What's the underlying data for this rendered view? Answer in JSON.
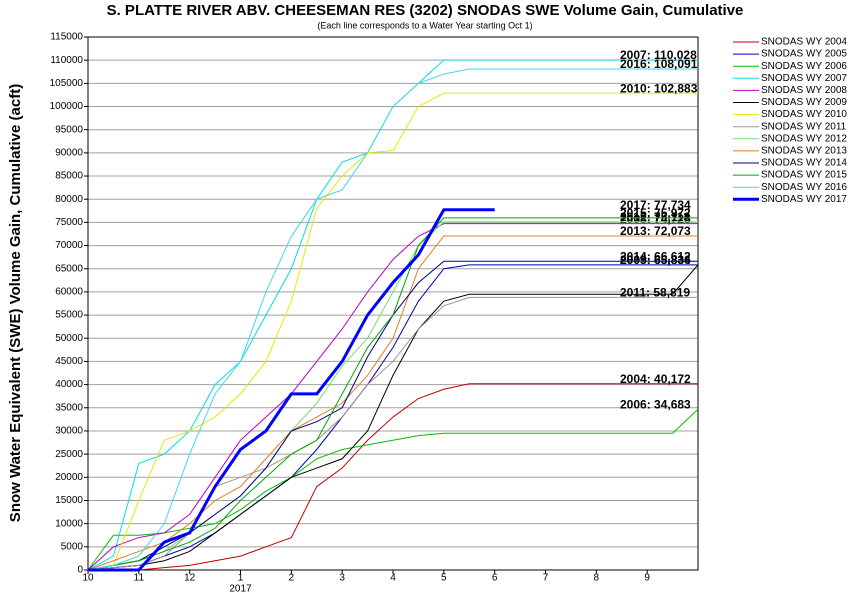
{
  "chart_data": {
    "type": "line",
    "title": "S. PLATTE RIVER ABV. CHEESEMAN RES (3202) SNODAS SWE Volume Gain, Cumulative",
    "subtitle": "(Each line corresponds to a Water Year starting Oct 1)",
    "y_label": "Snow Water Equivalent (SWE) Volume Gain, Cumulative (acft)",
    "x_sublabel": "2017",
    "xlim": [
      0,
      12
    ],
    "xticks": [
      {
        "value": 0,
        "label": "10"
      },
      {
        "value": 1,
        "label": "11"
      },
      {
        "value": 2,
        "label": "12"
      },
      {
        "value": 3,
        "label": "1"
      },
      {
        "value": 4,
        "label": "2"
      },
      {
        "value": 5,
        "label": "3"
      },
      {
        "value": 6,
        "label": "4"
      },
      {
        "value": 7,
        "label": "5"
      },
      {
        "value": 8,
        "label": "6"
      },
      {
        "value": 9,
        "label": "7"
      },
      {
        "value": 10,
        "label": "8"
      },
      {
        "value": 11,
        "label": "9"
      }
    ],
    "ylim": [
      0,
      115000
    ],
    "yticks": [
      0,
      5000,
      10000,
      15000,
      20000,
      25000,
      30000,
      35000,
      40000,
      45000,
      50000,
      55000,
      60000,
      65000,
      70000,
      75000,
      80000,
      85000,
      90000,
      95000,
      100000,
      105000,
      110000,
      115000
    ],
    "grid": true,
    "legend": "outside-top-right",
    "x": [
      0,
      0.5,
      1,
      1.5,
      2,
      2.5,
      3,
      3.5,
      4,
      4.5,
      5,
      5.5,
      6,
      6.5,
      7,
      7.5,
      8,
      8.5,
      9,
      9.5,
      10,
      10.5,
      11,
      11.5,
      12
    ],
    "series": [
      {
        "name": "SNODAS WY 2004",
        "color": "#c00000",
        "width": 1,
        "end_label": "2004: 40,172",
        "values": [
          0,
          0,
          0,
          500,
          1000,
          2000,
          3000,
          5000,
          7000,
          18000,
          22000,
          28000,
          33000,
          37000,
          39000,
          40172,
          40172,
          40172,
          40172,
          40172,
          40172,
          40172,
          40172,
          40172,
          40172
        ]
      },
      {
        "name": "SNODAS WY 2005",
        "color": "#0000c0",
        "width": 1,
        "end_label": "2005: 65,836",
        "values": [
          0,
          500,
          1000,
          3000,
          5000,
          8000,
          12000,
          16000,
          20000,
          26000,
          33000,
          40000,
          48000,
          58000,
          65000,
          65836,
          65836,
          65836,
          65836,
          65836,
          65836,
          65836,
          65836,
          65836,
          65836
        ]
      },
      {
        "name": "SNODAS WY 2006",
        "color": "#00c000",
        "width": 1,
        "end_label": "2006: 34,683",
        "values": [
          0,
          7500,
          7500,
          8000,
          9000,
          10000,
          13000,
          17000,
          20000,
          24000,
          26000,
          27000,
          28000,
          29000,
          29500,
          29500,
          29500,
          29500,
          29500,
          29500,
          29500,
          29500,
          29500,
          29500,
          34683
        ]
      },
      {
        "name": "SNODAS WY 2007",
        "color": "#00e0e0",
        "width": 1,
        "end_label": "2007: 110,028",
        "values": [
          0,
          3000,
          23000,
          25000,
          30000,
          40000,
          45000,
          55000,
          65000,
          80000,
          88000,
          90000,
          100000,
          105000,
          110028,
          110028,
          110028,
          110028,
          110028,
          110028,
          110028,
          110028,
          110028,
          110028,
          110028
        ]
      },
      {
        "name": "SNODAS WY 2008",
        "color": "#c000c0",
        "width": 1,
        "end_label": "2008: 74,725",
        "values": [
          0,
          5000,
          7000,
          8000,
          12000,
          20000,
          28000,
          33000,
          38000,
          45000,
          52000,
          60000,
          67000,
          72000,
          74725,
          74725,
          74725,
          74725,
          74725,
          74725,
          74725,
          74725,
          74725,
          74725,
          74725
        ]
      },
      {
        "name": "SNODAS WY 2009",
        "color": "#000000",
        "width": 1,
        "end_label": "2009: 65,834",
        "values": [
          0,
          500,
          1000,
          2000,
          4000,
          8000,
          12000,
          16000,
          20000,
          22000,
          24000,
          30000,
          42000,
          52000,
          58000,
          59500,
          59500,
          59500,
          59500,
          59500,
          59500,
          59500,
          59500,
          59500,
          65834
        ]
      },
      {
        "name": "SNODAS WY 2010",
        "color": "#e8e800",
        "width": 1,
        "end_label": "2010: 102,883",
        "values": [
          0,
          1000,
          15000,
          28000,
          30000,
          33000,
          38000,
          45000,
          58000,
          78000,
          85000,
          90000,
          90500,
          100000,
          102883,
          102883,
          102883,
          102883,
          102883,
          102883,
          102883,
          102883,
          102883,
          102883,
          102883
        ]
      },
      {
        "name": "SNODAS WY 2011",
        "color": "#a89090",
        "width": 1,
        "end_label": "2011: 58,819",
        "values": [
          0,
          500,
          1000,
          3000,
          8000,
          18000,
          20000,
          22000,
          25000,
          28000,
          33000,
          40000,
          45000,
          52000,
          57000,
          58819,
          58819,
          58819,
          58819,
          58819,
          58819,
          58819,
          58819,
          58819,
          58819
        ]
      },
      {
        "name": "SNODAS WY 2012",
        "color": "#70e070",
        "width": 1,
        "end_label": "2012: 75,113",
        "values": [
          0,
          1000,
          2000,
          4000,
          8000,
          12000,
          16000,
          22000,
          30000,
          36000,
          44000,
          50000,
          60000,
          70000,
          75113,
          75113,
          75113,
          75113,
          75113,
          75113,
          75113,
          75113,
          75113,
          75113,
          75113
        ]
      },
      {
        "name": "SNODAS WY 2013",
        "color": "#e08020",
        "width": 1,
        "end_label": "2013: 72,073",
        "values": [
          0,
          2000,
          4000,
          6000,
          10000,
          15000,
          18000,
          24000,
          30000,
          33000,
          36000,
          42000,
          50000,
          65000,
          72073,
          72073,
          72073,
          72073,
          72073,
          72073,
          72073,
          72073,
          72073,
          72073,
          72073
        ]
      },
      {
        "name": "SNODAS WY 2014",
        "color": "#000080",
        "width": 1,
        "end_label": "2014: 66,612",
        "values": [
          0,
          1000,
          2000,
          5000,
          8000,
          12000,
          16000,
          22000,
          30000,
          32000,
          35000,
          46000,
          55000,
          62000,
          66612,
          66612,
          66612,
          66612,
          66612,
          66612,
          66612,
          66612,
          66612,
          66612,
          66612
        ]
      },
      {
        "name": "SNODAS WY 2015",
        "color": "#00a800",
        "width": 1,
        "end_label": "2015: 75,972",
        "values": [
          0,
          1000,
          2000,
          4000,
          6000,
          9000,
          15000,
          20000,
          25000,
          28000,
          38000,
          48000,
          55000,
          70000,
          75972,
          75972,
          75972,
          75972,
          75972,
          75972,
          75972,
          75972,
          75972,
          75972,
          75972
        ]
      },
      {
        "name": "SNODAS WY 2016",
        "color": "#40d8e8",
        "width": 1,
        "end_label": "2016: 108,091",
        "values": [
          0,
          1000,
          3000,
          10000,
          25000,
          38000,
          45000,
          60000,
          72000,
          80000,
          82000,
          90000,
          100000,
          105000,
          107000,
          108091,
          108091,
          108091,
          108091,
          108091,
          108091,
          108091,
          108091,
          108091,
          108091
        ]
      },
      {
        "name": "SNODAS WY 2017",
        "color": "#0000ff",
        "width": 3,
        "end_label": "2017: 77,734",
        "values": [
          0,
          0,
          0,
          6000,
          8000,
          18000,
          26000,
          30000,
          38000,
          38000,
          45000,
          55000,
          62000,
          68000,
          77734,
          77734,
          77734,
          null,
          null,
          null,
          null,
          null,
          null,
          null,
          null
        ]
      }
    ]
  }
}
